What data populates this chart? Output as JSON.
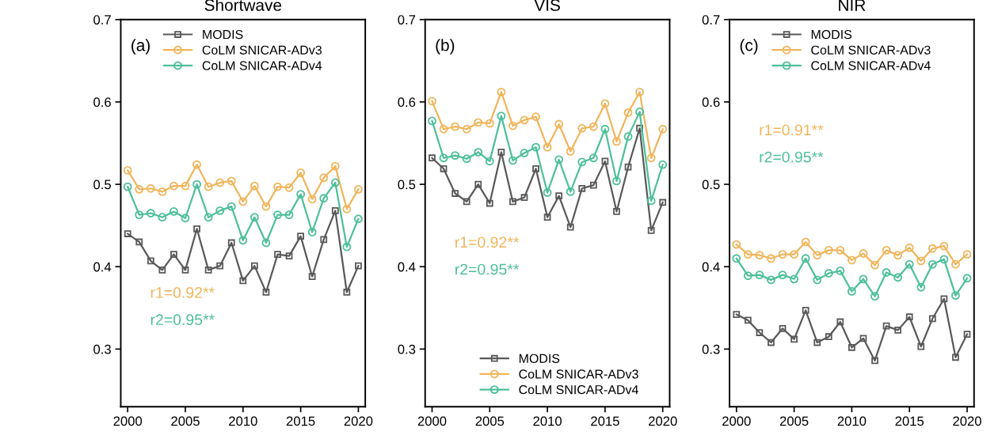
{
  "chart_data": [
    {
      "type": "line",
      "title": "Shortwave",
      "x": [
        2000,
        2001,
        2002,
        2003,
        2004,
        2005,
        2006,
        2007,
        2008,
        2009,
        2010,
        2011,
        2012,
        2013,
        2014,
        2015,
        2016,
        2017,
        2018,
        2019,
        2020
      ],
      "xlim": [
        1999.4,
        2020.6
      ],
      "xticks": [
        2000,
        2005,
        2010,
        2015,
        2020
      ],
      "ylim": [
        0.23,
        0.7
      ],
      "yticks": [
        0.3,
        0.4,
        0.5,
        0.6,
        0.7
      ],
      "grid": false,
      "legend": "top",
      "annotations": [
        "(a)",
        "r1=0.92**",
        "r2=0.95**"
      ],
      "series": [
        {
          "name": "MODIS",
          "color": "#595959",
          "marker": "square",
          "values": [
            0.44,
            0.43,
            0.407,
            0.396,
            0.415,
            0.396,
            0.446,
            0.396,
            0.401,
            0.429,
            0.383,
            0.401,
            0.369,
            0.415,
            0.413,
            0.437,
            0.388,
            0.433,
            0.468,
            0.369,
            0.401
          ]
        },
        {
          "name": "CoLM SNICAR-ADv3",
          "color": "#f0b55b",
          "marker": "circle",
          "values": [
            0.517,
            0.494,
            0.495,
            0.491,
            0.498,
            0.498,
            0.524,
            0.497,
            0.502,
            0.504,
            0.479,
            0.498,
            0.473,
            0.497,
            0.496,
            0.514,
            0.482,
            0.508,
            0.522,
            0.47,
            0.494
          ]
        },
        {
          "name": "CoLM SNICAR-ADv4",
          "color": "#4dbf99",
          "marker": "circle",
          "values": [
            0.497,
            0.463,
            0.465,
            0.46,
            0.467,
            0.459,
            0.5,
            0.46,
            0.468,
            0.473,
            0.432,
            0.46,
            0.429,
            0.463,
            0.463,
            0.488,
            0.442,
            0.483,
            0.502,
            0.424,
            0.458
          ]
        }
      ]
    },
    {
      "type": "line",
      "title": "VIS",
      "x": [
        2000,
        2001,
        2002,
        2003,
        2004,
        2005,
        2006,
        2007,
        2008,
        2009,
        2010,
        2011,
        2012,
        2013,
        2014,
        2015,
        2016,
        2017,
        2018,
        2019,
        2020
      ],
      "xlim": [
        1999.4,
        2020.6
      ],
      "xticks": [
        2000,
        2005,
        2010,
        2015,
        2020
      ],
      "ylim": [
        0.23,
        0.7
      ],
      "yticks": [
        0.3,
        0.4,
        0.5,
        0.6,
        0.7
      ],
      "grid": false,
      "legend": "bottom",
      "annotations": [
        "(b)",
        "r1=0.92**",
        "r2=0.95**"
      ],
      "series": [
        {
          "name": "MODIS",
          "color": "#595959",
          "marker": "square",
          "values": [
            0.532,
            0.519,
            0.489,
            0.479,
            0.5,
            0.477,
            0.539,
            0.479,
            0.484,
            0.519,
            0.46,
            0.486,
            0.448,
            0.495,
            0.499,
            0.528,
            0.467,
            0.521,
            0.568,
            0.444,
            0.478
          ]
        },
        {
          "name": "CoLM SNICAR-ADv3",
          "color": "#f0b55b",
          "marker": "circle",
          "values": [
            0.601,
            0.567,
            0.57,
            0.567,
            0.575,
            0.574,
            0.612,
            0.571,
            0.578,
            0.582,
            0.545,
            0.573,
            0.54,
            0.568,
            0.57,
            0.598,
            0.552,
            0.587,
            0.612,
            0.532,
            0.567
          ]
        },
        {
          "name": "CoLM SNICAR-ADv4",
          "color": "#4dbf99",
          "marker": "circle",
          "values": [
            0.577,
            0.532,
            0.535,
            0.531,
            0.539,
            0.528,
            0.583,
            0.529,
            0.538,
            0.545,
            0.49,
            0.53,
            0.491,
            0.527,
            0.532,
            0.567,
            0.504,
            0.558,
            0.588,
            0.48,
            0.524
          ]
        }
      ]
    },
    {
      "type": "line",
      "title": "NIR",
      "x": [
        2000,
        2001,
        2002,
        2003,
        2004,
        2005,
        2006,
        2007,
        2008,
        2009,
        2010,
        2011,
        2012,
        2013,
        2014,
        2015,
        2016,
        2017,
        2018,
        2019,
        2020
      ],
      "xlim": [
        1999.4,
        2020.6
      ],
      "xticks": [
        2000,
        2005,
        2010,
        2015,
        2020
      ],
      "ylim": [
        0.23,
        0.7
      ],
      "yticks": [
        0.3,
        0.4,
        0.5,
        0.6,
        0.7
      ],
      "grid": false,
      "legend": "top",
      "annotations": [
        "(c)",
        "r1=0.91**",
        "r2=0.95**"
      ],
      "series": [
        {
          "name": "MODIS",
          "color": "#595959",
          "marker": "square",
          "values": [
            0.342,
            0.335,
            0.32,
            0.308,
            0.325,
            0.312,
            0.347,
            0.308,
            0.315,
            0.333,
            0.302,
            0.313,
            0.286,
            0.328,
            0.323,
            0.339,
            0.303,
            0.337,
            0.361,
            0.29,
            0.318
          ]
        },
        {
          "name": "CoLM SNICAR-ADv3",
          "color": "#f0b55b",
          "marker": "circle",
          "values": [
            0.427,
            0.415,
            0.414,
            0.41,
            0.415,
            0.415,
            0.43,
            0.414,
            0.42,
            0.42,
            0.408,
            0.416,
            0.402,
            0.42,
            0.414,
            0.423,
            0.407,
            0.422,
            0.425,
            0.403,
            0.415
          ]
        },
        {
          "name": "CoLM SNICAR-ADv4",
          "color": "#4dbf99",
          "marker": "circle",
          "values": [
            0.41,
            0.389,
            0.39,
            0.384,
            0.39,
            0.385,
            0.41,
            0.384,
            0.392,
            0.395,
            0.37,
            0.385,
            0.364,
            0.393,
            0.387,
            0.403,
            0.375,
            0.403,
            0.409,
            0.365,
            0.386
          ]
        }
      ]
    }
  ]
}
